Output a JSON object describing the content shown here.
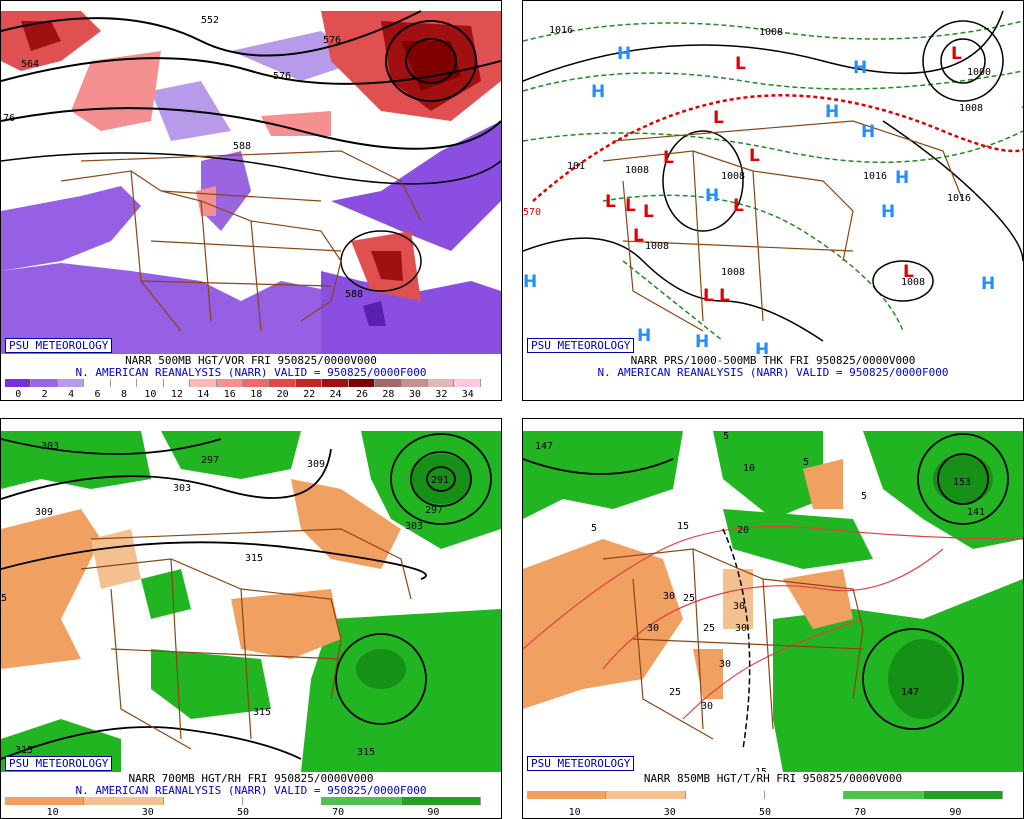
{
  "badge": "PSU METEOROLOGY",
  "panels": {
    "p1": {
      "caption1": "NARR 500MB HGT/VOR FRI 950825/0000V000",
      "caption2": "N. AMERICAN REANALYSIS (NARR) VALID = 950825/0000F000",
      "scale_ticks": [
        "0",
        "2",
        "4",
        "6",
        "8",
        "10",
        "12",
        "14",
        "16",
        "18",
        "20",
        "22",
        "24",
        "26",
        "28",
        "30",
        "32",
        "34"
      ],
      "scale_colors": [
        "#7a30d8",
        "#9a66e0",
        "#b79aea",
        "#ffffff",
        "#ffffff",
        "#ffffff",
        "#ffffff",
        "#ffb6b6",
        "#f59090",
        "#ec6a6a",
        "#de4848",
        "#c22828",
        "#a01010",
        "#800000",
        "#a06a6a",
        "#c49090",
        "#e0b8b8",
        "#ffc8e0"
      ],
      "contour_labels": [
        "552",
        "564",
        "576",
        "588",
        "588",
        "576",
        "76"
      ]
    },
    "p2": {
      "caption1": "NARR PRS/1000-500MB THK FRI 950825/0000V000",
      "caption2": "N. AMERICAN REANALYSIS (NARR) VALID = 950825/0000F000",
      "contour_labels": [
        "1016",
        "1008",
        "1000",
        "1008",
        "1016",
        "1008",
        "1008",
        "1008",
        "1016",
        "1008",
        "1016",
        "570",
        "101"
      ],
      "H": "H",
      "L": "L"
    },
    "p3": {
      "caption1": "NARR 700MB HGT/RH FRI 950825/0000V000",
      "caption2": "N. AMERICAN REANALYSIS (NARR) VALID = 950825/0000F000",
      "scale_ticks": [
        "10",
        "30",
        "50",
        "70",
        "90"
      ],
      "scale_colors": [
        "#f0a060",
        "#f5c090",
        "#ffffff",
        "#ffffff",
        "#50c050",
        "#22a022"
      ],
      "contour_labels": [
        "303",
        "297",
        "303",
        "309",
        "309",
        "315",
        "291",
        "297",
        "303",
        "315",
        "315",
        "315",
        "5"
      ]
    },
    "p4": {
      "caption1": "NARR 850MB HGT/T/RH FRI 950825/0000V000",
      "caption2": "",
      "scale_ticks": [
        "10",
        "30",
        "50",
        "70",
        "90"
      ],
      "scale_colors": [
        "#f0a060",
        "#f5c090",
        "#ffffff",
        "#ffffff",
        "#50c050",
        "#22a022"
      ],
      "contour_labels": [
        "147",
        "5",
        "10",
        "5",
        "5",
        "15",
        "20",
        "25",
        "30",
        "30",
        "25",
        "30",
        "30",
        "30",
        "25",
        "30",
        "15",
        "147",
        "141",
        "153",
        "5"
      ]
    }
  },
  "colors": {
    "vor_purple": "#8a4fe0",
    "vor_red": "#e05050",
    "rh_green": "#22b522",
    "rh_orange": "#f0a060",
    "boundary": "#8b4513",
    "thickness_green": "#228b22",
    "front_red": "#e00000",
    "H_color": "#1e90ff",
    "L_color": "#e00000",
    "text_blue": "#0000cc"
  }
}
